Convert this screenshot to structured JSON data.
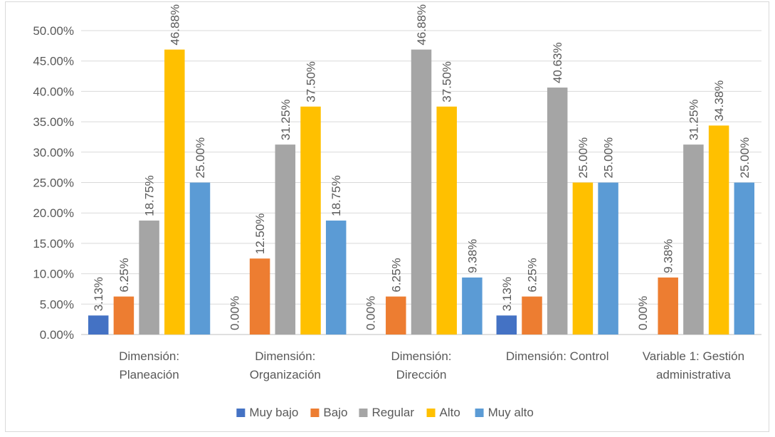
{
  "chart_data": {
    "type": "bar",
    "title": "",
    "xlabel": "",
    "ylabel": "",
    "ylim": [
      0,
      0.5
    ],
    "y_ticks": [
      "0.00%",
      "5.00%",
      "10.00%",
      "15.00%",
      "20.00%",
      "25.00%",
      "30.00%",
      "35.00%",
      "40.00%",
      "45.00%",
      "50.00%"
    ],
    "grid": true,
    "legend_position": "bottom",
    "categories": [
      [
        "Dimensión:",
        "Planeación"
      ],
      [
        "Dimensión:",
        "Organización"
      ],
      [
        "Dimensión:",
        "Dirección"
      ],
      [
        "Dimensión: Control"
      ],
      [
        "Variable 1: Gestión",
        "administrativa"
      ]
    ],
    "series": [
      {
        "name": "Muy bajo",
        "color": "#4472c4",
        "values": [
          0.0313,
          0.0,
          0.0,
          0.0313,
          0.0
        ],
        "labels": [
          "3.13%",
          "0.00%",
          "0.00%",
          "3.13%",
          "0.00%"
        ]
      },
      {
        "name": "Bajo",
        "color": "#ed7d31",
        "values": [
          0.0625,
          0.125,
          0.0625,
          0.0625,
          0.0938
        ],
        "labels": [
          "6.25%",
          "12.50%",
          "6.25%",
          "6.25%",
          "9.38%"
        ]
      },
      {
        "name": "Regular",
        "color": "#a5a5a5",
        "values": [
          0.1875,
          0.3125,
          0.4688,
          0.4063,
          0.3125
        ],
        "labels": [
          "18.75%",
          "31.25%",
          "46.88%",
          "40.63%",
          "31.25%"
        ]
      },
      {
        "name": "Alto",
        "color": "#ffc000",
        "values": [
          0.4688,
          0.375,
          0.375,
          0.25,
          0.3438
        ],
        "labels": [
          "46.88%",
          "37.50%",
          "37.50%",
          "25.00%",
          "34.38%"
        ]
      },
      {
        "name": "Muy alto",
        "color": "#5b9bd5",
        "values": [
          0.25,
          0.1875,
          0.0938,
          0.25,
          0.25
        ],
        "labels": [
          "25.00%",
          "18.75%",
          "9.38%",
          "25.00%",
          "25.00%"
        ]
      }
    ]
  }
}
